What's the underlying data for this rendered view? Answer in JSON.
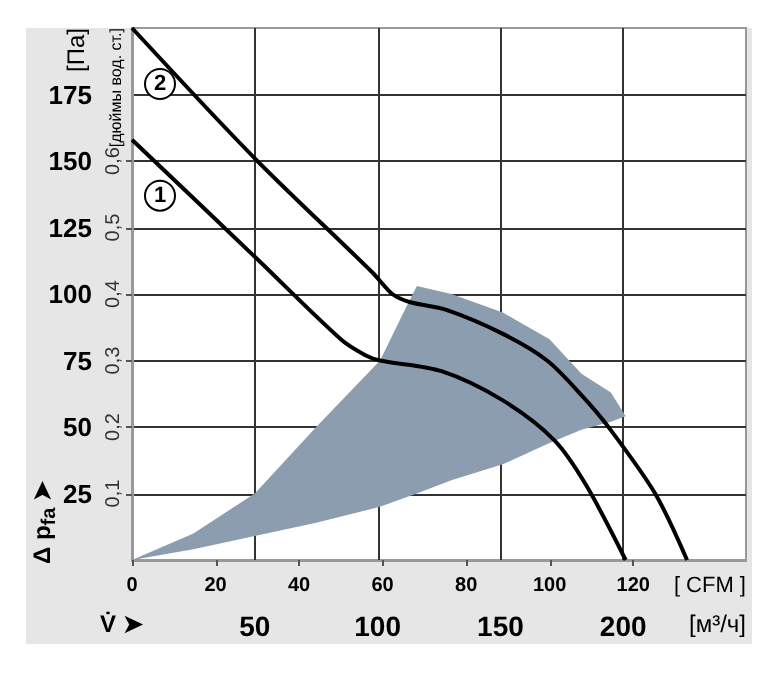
{
  "chart_data": {
    "type": "line",
    "xlabel": "[м³/ч]",
    "ylabel": "[Па]",
    "x2label": "[ CFM ]",
    "y2label": "[дюймы вод. ст.]",
    "annotations": [
      "V̇ ➤",
      "Δ p$_{fa}$ ➤"
    ],
    "xlim": [
      0,
      250
    ],
    "xticks": [
      50,
      100,
      150,
      200
    ],
    "ylim": [
      0,
      200
    ],
    "yticks": [
      25,
      50,
      75,
      100,
      125,
      150,
      175
    ],
    "x2lim": [
      0,
      147
    ],
    "x2ticks": [
      0,
      20,
      40,
      60,
      80,
      100,
      120
    ],
    "y2lim": [
      0,
      0.8
    ],
    "y2ticks": [
      {
        "value": 0.1,
        "label": "0,1"
      },
      {
        "value": 0.2,
        "label": "0,2"
      },
      {
        "value": 0.3,
        "label": "0,3"
      },
      {
        "value": 0.4,
        "label": "0,4"
      },
      {
        "value": 0.5,
        "label": "0,5"
      },
      {
        "value": 0.6,
        "label": "0,6"
      }
    ],
    "grid": true,
    "marker": "none",
    "series": [
      {
        "type": "area",
        "color": "#8c9db0",
        "x": [
          0,
          25,
          50,
          75,
          101,
          110,
          116,
          130,
          151,
          170,
          183,
          195,
          201
        ],
        "values": [
          null,
          null,
          null,
          null,
          null,
          null,
          null,
          null,
          null,
          null,
          null,
          null,
          null
        ],
        "upper": [
          0,
          10,
          25,
          50,
          75,
          92,
          103,
          100,
          93,
          83,
          70,
          63,
          54
        ],
        "lower": [
          0,
          4,
          9,
          14,
          20,
          23,
          25,
          30,
          36,
          44,
          49,
          52,
          54
        ]
      },
      {
        "name": "1",
        "color": "#000000",
        "x": [
          0,
          50,
          85,
          95,
          101,
          126,
          151,
          172,
          185,
          201
        ],
        "values": [
          158,
          114,
          83,
          77,
          75,
          71,
          60,
          45,
          28,
          0
        ]
      },
      {
        "name": "2",
        "color": "#000000",
        "x": [
          0,
          50,
          98,
          106,
          113,
          128,
          151,
          169,
          183,
          194,
          213,
          226
        ],
        "values": [
          200,
          151,
          108,
          100,
          97,
          94,
          85,
          75,
          62,
          50,
          25,
          0
        ]
      }
    ]
  }
}
